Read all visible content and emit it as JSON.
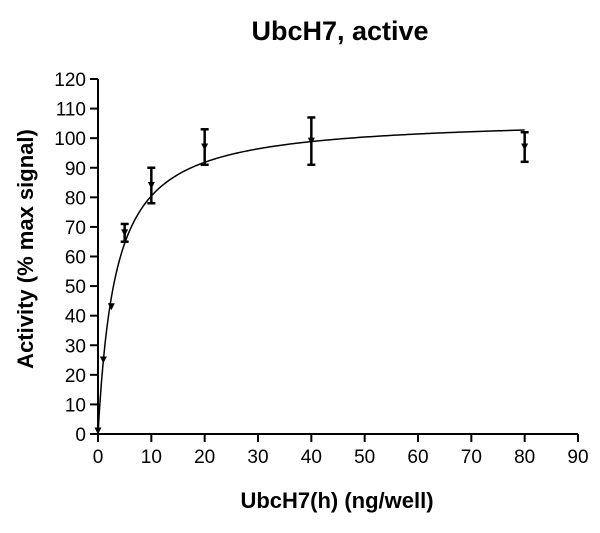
{
  "chart_data": {
    "type": "scatter",
    "title": "UbcH7, active",
    "xlabel": "UbcH7(h) (ng/well)",
    "ylabel": "Activity (% max signal)",
    "xlim": [
      0,
      90
    ],
    "ylim": [
      0,
      120
    ],
    "x_ticks": [
      "0",
      "10",
      "20",
      "30",
      "40",
      "50",
      "60",
      "70",
      "80",
      "90"
    ],
    "y_ticks": [
      "0",
      "10",
      "20",
      "30",
      "40",
      "50",
      "60",
      "70",
      "80",
      "90",
      "100",
      "110",
      "120"
    ],
    "grid": false,
    "legend": "none",
    "marker": "down-triangle",
    "series": [
      {
        "points": [
          {
            "x": 0,
            "y": 1,
            "err": 0
          },
          {
            "x": 1,
            "y": 25,
            "err": 0
          },
          {
            "x": 2.5,
            "y": 43,
            "err": 0
          },
          {
            "x": 5,
            "y": 68,
            "err": 3
          },
          {
            "x": 10,
            "y": 84,
            "err": 6
          },
          {
            "x": 20,
            "y": 97,
            "err": 6
          },
          {
            "x": 40,
            "y": 99,
            "err": 8
          },
          {
            "x": 80,
            "y": 97,
            "err": 5
          }
        ]
      }
    ],
    "fit": {
      "type": "hyperbola",
      "ymax": 107,
      "k": 3.3,
      "x_range": [
        0,
        80
      ]
    },
    "colors": {
      "axis": "#000000",
      "marks": "#000000",
      "background": "#ffffff"
    }
  }
}
